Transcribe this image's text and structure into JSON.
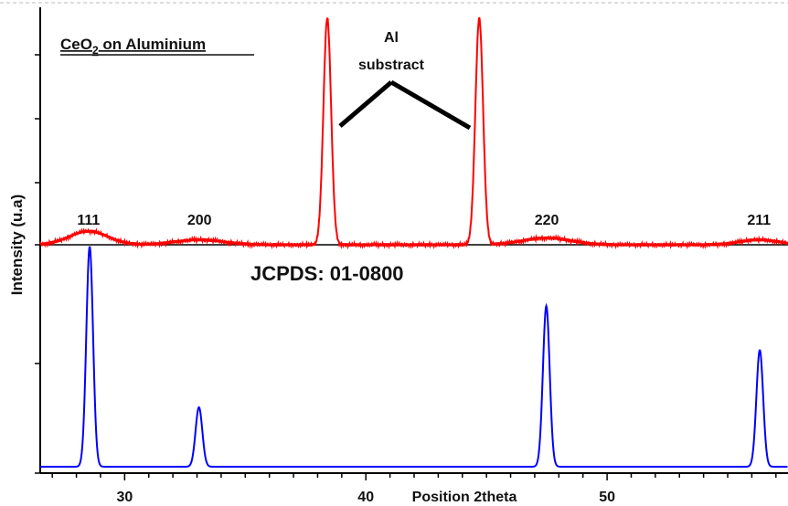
{
  "chart_data": {
    "type": "line",
    "xlabel": "Position 2theta",
    "ylabel": "Intensity (u.a)",
    "xlim": [
      26.5,
      57.5
    ],
    "x_ticks": [
      30,
      40,
      50
    ],
    "x_tick_labels": [
      "30",
      "40",
      "50"
    ],
    "panels": [
      {
        "name": "top",
        "title_main": "CeO",
        "title_sub": "2",
        "title_rest": " on Aluminium",
        "color": "#ff0000",
        "peaks": [
          {
            "x": 28.5,
            "h": 0.06,
            "w": 0.8,
            "label": "111"
          },
          {
            "x": 33.1,
            "h": 0.022,
            "w": 1.0,
            "label": "200"
          },
          {
            "x": 38.4,
            "h": 1.0,
            "w": 0.16,
            "label": ""
          },
          {
            "x": 44.7,
            "h": 1.0,
            "w": 0.16,
            "label": ""
          },
          {
            "x": 47.5,
            "h": 0.03,
            "w": 1.0,
            "label": "220"
          },
          {
            "x": 56.3,
            "h": 0.022,
            "w": 0.8,
            "label": "211"
          }
        ],
        "annotation": {
          "line1": "Al",
          "line2": "substract"
        }
      },
      {
        "name": "bottom",
        "title": "JCPDS: 01-0800",
        "color": "#0000ff",
        "peaks": [
          {
            "x": 28.55,
            "h": 1.0,
            "w": 0.14
          },
          {
            "x": 33.08,
            "h": 0.27,
            "w": 0.14
          },
          {
            "x": 47.48,
            "h": 0.73,
            "w": 0.14
          },
          {
            "x": 56.33,
            "h": 0.53,
            "w": 0.14
          }
        ]
      }
    ]
  }
}
